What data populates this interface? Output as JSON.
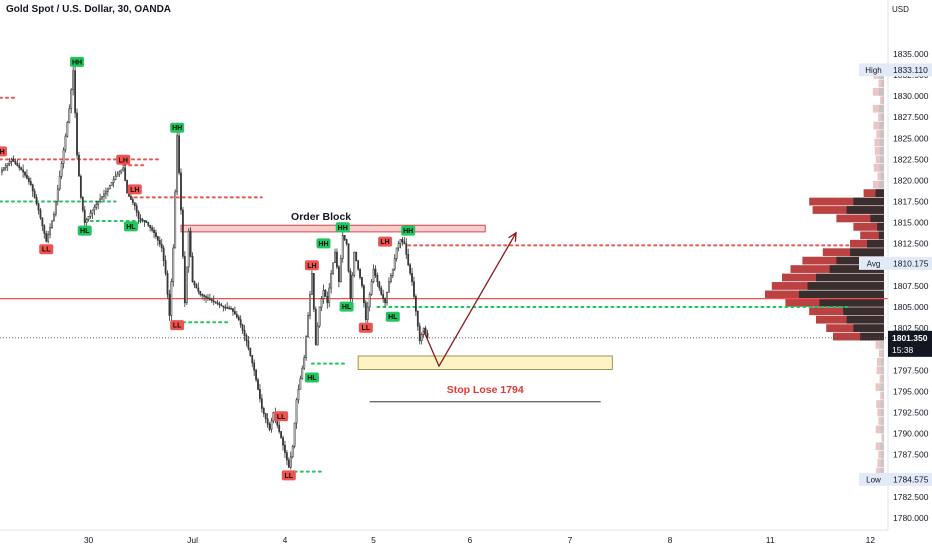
{
  "chart_data": {
    "type": "candlestick",
    "title": "Gold Spot / U.S. Dollar, 30, OANDA",
    "currency": "USD",
    "ylim": [
      1780,
      1837
    ],
    "y_ticks": [
      1780.0,
      1782.5,
      1785.0,
      1787.5,
      1790.0,
      1792.5,
      1795.0,
      1797.5,
      1800.0,
      1802.5,
      1805.0,
      1807.5,
      1810.0,
      1812.5,
      1815.0,
      1817.5,
      1820.0,
      1822.5,
      1825.0,
      1827.5,
      1830.0,
      1832.5,
      1835.0
    ],
    "y_tick_labels": [
      "1780.000",
      "1782.500",
      "1785.000",
      "1787.500",
      "1790.000",
      "1792.500",
      "1795.000",
      "1797.500",
      "1800.000",
      "1802.500",
      "1805.000",
      "1807.500",
      "1810.000",
      "1812.500",
      "1815.000",
      "1817.500",
      "1820.000",
      "1822.500",
      "1825.000",
      "1827.500",
      "1830.000",
      "1832.500",
      "1835.000"
    ],
    "x_labels": [
      {
        "label": "30",
        "index": 5
      },
      {
        "label": "Jul",
        "index": 32
      },
      {
        "label": "4",
        "index": 56
      },
      {
        "label": "5",
        "index": 79
      },
      {
        "label": "6",
        "index": 104
      },
      {
        "label": "7",
        "index": 130
      },
      {
        "label": "8",
        "index": 156
      },
      {
        "label": "11",
        "index": 182
      },
      {
        "label": "12",
        "index": 208
      }
    ],
    "x_range": [
      -18,
      210
    ],
    "price_badges": [
      {
        "label": "High",
        "value": "1833.110",
        "price": 1833.11
      },
      {
        "label": "Avg",
        "value": "1810.175",
        "price": 1810.175
      },
      {
        "label": "Low",
        "value": "1784.575",
        "price": 1784.575
      }
    ],
    "current_price": {
      "value": "1801.350",
      "countdown": "15:38",
      "price": 1801.35
    },
    "close_path": [
      [
        -18,
        1821.0
      ],
      [
        -15,
        1822.5
      ],
      [
        -12,
        1821.0
      ],
      [
        -10,
        1819.5
      ],
      [
        -8,
        1816.5
      ],
      [
        -6,
        1812.8
      ],
      [
        -4,
        1816.0
      ],
      [
        -2,
        1822.0
      ],
      [
        0,
        1828.5
      ],
      [
        1,
        1833.0
      ],
      [
        2,
        1823.0
      ],
      [
        3,
        1818.0
      ],
      [
        4,
        1815.0
      ],
      [
        6,
        1816.5
      ],
      [
        8,
        1817.8
      ],
      [
        10,
        1819.0
      ],
      [
        12,
        1820.5
      ],
      [
        14,
        1821.5
      ],
      [
        15,
        1818.5
      ],
      [
        17,
        1817.0
      ],
      [
        18,
        1815.5
      ],
      [
        20,
        1815.0
      ],
      [
        22,
        1813.8
      ],
      [
        24,
        1812.0
      ],
      [
        25,
        1809.0
      ],
      [
        26,
        1804.0
      ],
      [
        27,
        1812.0
      ],
      [
        28,
        1825.3
      ],
      [
        29,
        1816.5
      ],
      [
        30,
        1805.5
      ],
      [
        31,
        1814.0
      ],
      [
        32,
        1808.0
      ],
      [
        34,
        1806.5
      ],
      [
        36,
        1806.0
      ],
      [
        38,
        1805.5
      ],
      [
        40,
        1805.0
      ],
      [
        42,
        1804.8
      ],
      [
        44,
        1803.5
      ],
      [
        46,
        1801.0
      ],
      [
        48,
        1797.5
      ],
      [
        50,
        1793.0
      ],
      [
        52,
        1790.5
      ],
      [
        53,
        1792.5
      ],
      [
        55,
        1789.5
      ],
      [
        57,
        1786.0
      ],
      [
        58,
        1788.5
      ],
      [
        59,
        1794.0
      ],
      [
        61,
        1799.0
      ],
      [
        62,
        1804.0
      ],
      [
        63,
        1809.0
      ],
      [
        64,
        1800.5
      ],
      [
        65,
        1805.0
      ],
      [
        66,
        1807.0
      ],
      [
        67,
        1805.5
      ],
      [
        68,
        1809.0
      ],
      [
        69,
        1811.5
      ],
      [
        70,
        1808.0
      ],
      [
        71,
        1813.5
      ],
      [
        72,
        1812.5
      ],
      [
        73,
        1806.0
      ],
      [
        74,
        1811.5
      ],
      [
        75,
        1809.5
      ],
      [
        76,
        1807.5
      ],
      [
        77,
        1803.5
      ],
      [
        78,
        1806.5
      ],
      [
        79,
        1809.5
      ],
      [
        80,
        1808.0
      ],
      [
        81,
        1806.5
      ],
      [
        82,
        1805.5
      ],
      [
        83,
        1808.0
      ],
      [
        84,
        1809.5
      ],
      [
        85,
        1812.0
      ],
      [
        86,
        1813.0
      ],
      [
        87,
        1812.5
      ],
      [
        88,
        1810.0
      ],
      [
        89,
        1808.0
      ],
      [
        90,
        1804.5
      ],
      [
        91,
        1801.0
      ],
      [
        92,
        1802.5
      ],
      [
        93,
        1801.35
      ]
    ],
    "pivot_labels": [
      {
        "text": "HH",
        "index": 2,
        "price": 1833.11,
        "pos": "above"
      },
      {
        "text": "HH",
        "index": 28,
        "price": 1825.3,
        "pos": "above"
      },
      {
        "text": "LH",
        "index": -18,
        "price": 1822.5,
        "pos": "above"
      },
      {
        "text": "LH",
        "index": 14,
        "price": 1821.5,
        "pos": "above"
      },
      {
        "text": "LH",
        "index": 17,
        "price": 1818.0,
        "pos": "above"
      },
      {
        "text": "LL",
        "index": -6,
        "price": 1812.8,
        "pos": "below"
      },
      {
        "text": "HL",
        "index": 4,
        "price": 1815.0,
        "pos": "below"
      },
      {
        "text": "HL",
        "index": 16,
        "price": 1815.5,
        "pos": "below"
      },
      {
        "text": "LL",
        "index": 28,
        "price": 1803.8,
        "pos": "below"
      },
      {
        "text": "LL",
        "index": 55,
        "price": 1793.0,
        "pos": "below"
      },
      {
        "text": "LL",
        "index": 57,
        "price": 1786.0,
        "pos": "below"
      },
      {
        "text": "HL",
        "index": 63,
        "price": 1797.6,
        "pos": "below"
      },
      {
        "text": "LH",
        "index": 63,
        "price": 1809.0,
        "pos": "above"
      },
      {
        "text": "HH",
        "index": 66,
        "price": 1811.6,
        "pos": "above"
      },
      {
        "text": "HH",
        "index": 71,
        "price": 1813.5,
        "pos": "above"
      },
      {
        "text": "HL",
        "index": 72,
        "price": 1806.0,
        "pos": "below"
      },
      {
        "text": "LL",
        "index": 77,
        "price": 1803.5,
        "pos": "below"
      },
      {
        "text": "LH",
        "index": 82,
        "price": 1811.8,
        "pos": "above"
      },
      {
        "text": "HL",
        "index": 84,
        "price": 1804.8,
        "pos": "below"
      },
      {
        "text": "HH",
        "index": 88,
        "price": 1813.1,
        "pos": "above"
      }
    ],
    "pivot_colors": {
      "HH": "#22c55e",
      "HL": "#22c55e",
      "LH": "#ef5350",
      "LL": "#ef5350"
    },
    "level_lines": [
      {
        "price": 1829.8,
        "from": -18,
        "to": -14,
        "color": "#ef5350",
        "style": "dotted"
      },
      {
        "price": 1822.5,
        "from": -18,
        "to": 24,
        "color": "#ef5350",
        "style": "dotted"
      },
      {
        "price": 1821.8,
        "from": 14,
        "to": 20,
        "color": "#ef5350",
        "style": "dotted"
      },
      {
        "price": 1818.0,
        "from": 17,
        "to": 50,
        "color": "#ef5350",
        "style": "dotted"
      },
      {
        "price": 1817.5,
        "from": -18,
        "to": 12,
        "color": "#22c55e",
        "style": "dotted"
      },
      {
        "price": 1815.2,
        "from": 4,
        "to": 20,
        "color": "#22c55e",
        "style": "dotted"
      },
      {
        "price": 1814.6,
        "from": 68,
        "to": 82,
        "color": "#ef5350",
        "style": "dotted"
      },
      {
        "price": 1812.3,
        "from": 88,
        "to": 203,
        "color": "#ef5350",
        "style": "dotted"
      },
      {
        "price": 1805.0,
        "from": 80,
        "to": 203,
        "color": "#22c55e",
        "style": "dotted"
      },
      {
        "price": 1803.2,
        "from": 28,
        "to": 42,
        "color": "#22c55e",
        "style": "dotted"
      },
      {
        "price": 1798.3,
        "from": 63,
        "to": 72,
        "color": "#22c55e",
        "style": "dotted"
      },
      {
        "price": 1785.5,
        "from": 57,
        "to": 66,
        "color": "#22c55e",
        "style": "dotted"
      }
    ],
    "resistance_line": {
      "price": 1806.0,
      "color": "#ef5350"
    },
    "order_block": {
      "label": "Order Block",
      "price_low": 1813.9,
      "price_high": 1814.7,
      "from": 29,
      "to": 108,
      "fill": "#f8cccc",
      "stroke": "#c62828"
    },
    "target_zone": {
      "price_low": 1797.6,
      "price_high": 1799.2,
      "from": 75,
      "to": 141,
      "fill": "#fdf3c4",
      "stroke": "#8a7a30"
    },
    "stop_loss": {
      "label": "Stop Lose 1794",
      "price": 1794,
      "from": 78,
      "to": 138,
      "color": "#e53935"
    },
    "projection": [
      [
        92,
        1802.2
      ],
      [
        96,
        1798.0
      ],
      [
        116,
        1813.8
      ]
    ],
    "projection_color": "#8b1a1a",
    "volume_profile": [
      {
        "price": 1818.5,
        "up": 0.12,
        "down": 0.05
      },
      {
        "price": 1817.5,
        "up": 0.44,
        "down": 0.18
      },
      {
        "price": 1816.5,
        "up": 0.42,
        "down": 0.22
      },
      {
        "price": 1815.5,
        "up": 0.28,
        "down": 0.08
      },
      {
        "price": 1814.5,
        "up": 0.18,
        "down": 0.04
      },
      {
        "price": 1813.5,
        "up": 0.14,
        "down": 0.03
      },
      {
        "price": 1812.5,
        "up": 0.2,
        "down": 0.1
      },
      {
        "price": 1811.5,
        "up": 0.36,
        "down": 0.2
      },
      {
        "price": 1810.5,
        "up": 0.48,
        "down": 0.28
      },
      {
        "price": 1809.5,
        "up": 0.55,
        "down": 0.32
      },
      {
        "price": 1808.5,
        "up": 0.6,
        "down": 0.4
      },
      {
        "price": 1807.5,
        "up": 0.66,
        "down": 0.45
      },
      {
        "price": 1806.5,
        "up": 0.7,
        "down": 0.5
      },
      {
        "price": 1805.5,
        "up": 0.58,
        "down": 0.38
      },
      {
        "price": 1804.5,
        "up": 0.44,
        "down": 0.24
      },
      {
        "price": 1803.5,
        "up": 0.4,
        "down": 0.22
      },
      {
        "price": 1802.5,
        "up": 0.34,
        "down": 0.18
      },
      {
        "price": 1801.5,
        "up": 0.3,
        "down": 0.14
      }
    ]
  }
}
